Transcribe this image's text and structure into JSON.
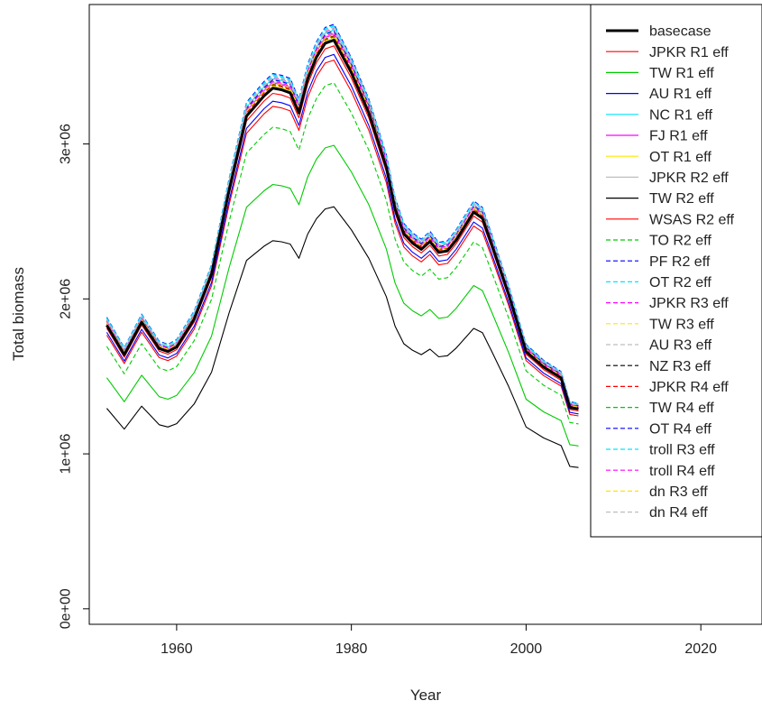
{
  "chart_data": {
    "type": "line",
    "title": "",
    "xlabel": "Year",
    "ylabel": "Total biomass",
    "xlim": [
      1950,
      2027
    ],
    "ylim": [
      -100000,
      3900000
    ],
    "x_ticks": [
      1960,
      1980,
      2000,
      2020
    ],
    "x_tick_labels": [
      "1960",
      "1980",
      "2000",
      "2020"
    ],
    "y_ticks": [
      0,
      1000000,
      2000000,
      3000000
    ],
    "y_tick_labels": [
      "0e+00",
      "1e+06",
      "2e+06",
      "3e+06"
    ],
    "legend_position": "top-right",
    "x": [
      1952,
      1954,
      1956,
      1958,
      1959,
      1960,
      1962,
      1964,
      1966,
      1968,
      1970,
      1971,
      1972,
      1973,
      1974,
      1975,
      1976,
      1977,
      1978,
      1980,
      1982,
      1984,
      1985,
      1986,
      1987,
      1988,
      1989,
      1990,
      1991,
      1992,
      1994,
      1995,
      1996,
      1998,
      2000,
      2002,
      2004,
      2005,
      2006
    ],
    "base_values": [
      1830000,
      1640000,
      1850000,
      1680000,
      1660000,
      1690000,
      1870000,
      2160000,
      2700000,
      3180000,
      3310000,
      3360000,
      3350000,
      3330000,
      3200000,
      3420000,
      3560000,
      3650000,
      3670000,
      3460000,
      3200000,
      2850000,
      2580000,
      2420000,
      2360000,
      2320000,
      2370000,
      2300000,
      2310000,
      2380000,
      2560000,
      2520000,
      2360000,
      2030000,
      1660000,
      1560000,
      1490000,
      1300000,
      1290000
    ],
    "series": [
      {
        "name": "basecase",
        "color": "#000000",
        "dash": "solid",
        "scale": 1.0,
        "bold": true
      },
      {
        "name": "JPKR R1 eff",
        "color": "#ff0000",
        "dash": "solid",
        "scale": 0.965
      },
      {
        "name": "TW R1 eff",
        "color": "#00cc00",
        "dash": "solid",
        "scale": 0.815
      },
      {
        "name": "AU R1 eff",
        "color": "#0000ff",
        "dash": "solid",
        "scale": 0.975
      },
      {
        "name": "NC R1 eff",
        "color": "#00e5ff",
        "dash": "solid",
        "scale": 1.018
      },
      {
        "name": "FJ R1 eff",
        "color": "#ff00ff",
        "dash": "solid",
        "scale": 1.01
      },
      {
        "name": "OT R1 eff",
        "color": "#ffe600",
        "dash": "solid",
        "scale": 1.004
      },
      {
        "name": "JPKR R2 eff",
        "color": "#bebebe",
        "dash": "solid",
        "scale": 1.012
      },
      {
        "name": "TW R2 eff",
        "color": "#000000",
        "dash": "solid",
        "scale": 0.707
      },
      {
        "name": "WSAS R2 eff",
        "color": "#ff0000",
        "dash": "solid",
        "scale": 0.99
      },
      {
        "name": "TO R2 eff",
        "color": "#00cc00",
        "dash": "dashed",
        "scale": 0.925
      },
      {
        "name": "PF R2 eff",
        "color": "#0000ff",
        "dash": "dashed",
        "scale": 1.028
      },
      {
        "name": "OT R2 eff",
        "color": "#00e5ff",
        "dash": "dashed",
        "scale": 1.024
      },
      {
        "name": "JPKR R3 eff",
        "color": "#ff00ff",
        "dash": "dashed",
        "scale": 1.02
      },
      {
        "name": "TW R3 eff",
        "color": "#ffe600",
        "dash": "dashed",
        "scale": 1.015
      },
      {
        "name": "AU R3 eff",
        "color": "#bebebe",
        "dash": "dashed",
        "scale": 1.022
      },
      {
        "name": "NZ R3 eff",
        "color": "#000000",
        "dash": "dashed",
        "scale": 1.008
      },
      {
        "name": "JPKR R4 eff",
        "color": "#ff0000",
        "dash": "dashed",
        "scale": 1.006
      },
      {
        "name": "TW R4 eff",
        "color": "#00cc00",
        "dash": "dashed",
        "scale": 1.002
      },
      {
        "name": "OT R4 eff",
        "color": "#0000ff",
        "dash": "dashed",
        "scale": 1.016
      },
      {
        "name": "troll R3 eff",
        "color": "#00e5ff",
        "dash": "dashed",
        "scale": 1.026
      },
      {
        "name": "troll R4 eff",
        "color": "#ff00ff",
        "dash": "dashed",
        "scale": 1.013
      },
      {
        "name": "dn R3 eff",
        "color": "#ffe600",
        "dash": "dashed",
        "scale": 1.009
      },
      {
        "name": "dn R4 eff",
        "color": "#bebebe",
        "dash": "dashed",
        "scale": 1.019
      }
    ]
  }
}
